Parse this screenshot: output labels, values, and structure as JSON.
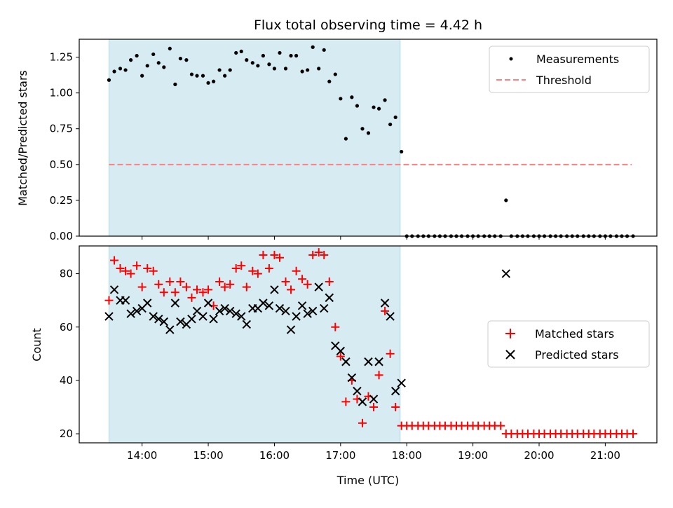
{
  "chart_data": [
    {
      "type": "scatter",
      "panel": "ratio",
      "title": "Flux total observing time = 4.42 h",
      "xlabel": "",
      "ylabel": "Matched/Predicted stars",
      "xlim": [
        13.05,
        21.78
      ],
      "ylim": [
        0.0,
        1.375
      ],
      "xticks": [
        14,
        15,
        16,
        17,
        18,
        19,
        20,
        21
      ],
      "yticks": [
        0.0,
        0.25,
        0.5,
        0.75,
        1.0,
        1.25
      ],
      "ytick_labels": [
        "0.00",
        "0.25",
        "0.50",
        "0.75",
        "1.00",
        "1.25"
      ],
      "observing_window": [
        13.5,
        17.9
      ],
      "colors": {
        "span": "#add8e6",
        "measurement": "#000000",
        "threshold": "#ff8080"
      },
      "legend": {
        "placement": "upper right",
        "entries": [
          "Measurements",
          "Threshold"
        ]
      },
      "threshold": {
        "name": "Threshold",
        "value": 0.5,
        "x_range": [
          13.5,
          21.4
        ]
      },
      "series": [
        {
          "name": "Measurements",
          "x": [
            13.5,
            13.58,
            13.67,
            13.75,
            13.83,
            13.92,
            14.0,
            14.08,
            14.17,
            14.25,
            14.33,
            14.42,
            14.5,
            14.58,
            14.67,
            14.75,
            14.83,
            14.92,
            15.0,
            15.08,
            15.17,
            15.25,
            15.33,
            15.42,
            15.5,
            15.58,
            15.67,
            15.75,
            15.83,
            15.92,
            16.0,
            16.08,
            16.17,
            16.25,
            16.33,
            16.42,
            16.5,
            16.58,
            16.67,
            16.75,
            16.83,
            16.92,
            17.0,
            17.08,
            17.17,
            17.25,
            17.33,
            17.42,
            17.5,
            17.58,
            17.67,
            17.75,
            17.83,
            17.92,
            18.0,
            18.08,
            18.17,
            18.25,
            18.33,
            18.42,
            18.5,
            18.58,
            18.67,
            18.75,
            18.83,
            18.92,
            19.0,
            19.08,
            19.17,
            19.25,
            19.33,
            19.42,
            19.5,
            19.58,
            19.67,
            19.75,
            19.83,
            19.92,
            20.0,
            20.08,
            20.17,
            20.25,
            20.33,
            20.42,
            20.5,
            20.58,
            20.67,
            20.75,
            20.83,
            20.92,
            21.0,
            21.08,
            21.17,
            21.25,
            21.33,
            21.42
          ],
          "y": [
            1.09,
            1.15,
            1.17,
            1.16,
            1.23,
            1.26,
            1.12,
            1.19,
            1.27,
            1.21,
            1.18,
            1.31,
            1.06,
            1.24,
            1.23,
            1.13,
            1.12,
            1.12,
            1.07,
            1.08,
            1.16,
            1.12,
            1.16,
            1.28,
            1.29,
            1.23,
            1.21,
            1.19,
            1.26,
            1.2,
            1.17,
            1.28,
            1.17,
            1.26,
            1.26,
            1.15,
            1.16,
            1.32,
            1.17,
            1.3,
            1.08,
            1.13,
            0.96,
            0.68,
            0.97,
            0.91,
            0.75,
            0.72,
            0.9,
            0.89,
            0.95,
            0.78,
            0.83,
            0.59,
            0.0,
            0.0,
            0.0,
            0.0,
            0.0,
            0.0,
            0.0,
            0.0,
            0.0,
            0.0,
            0.0,
            0.0,
            0.0,
            0.0,
            0.0,
            0.0,
            0.0,
            0.0,
            0.25,
            0.0,
            0.0,
            0.0,
            0.0,
            0.0,
            0.0,
            0.0,
            0.0,
            0.0,
            0.0,
            0.0,
            0.0,
            0.0,
            0.0,
            0.0,
            0.0,
            0.0,
            0.0,
            0.0,
            0.0,
            0.0,
            0.0,
            0.0
          ]
        }
      ]
    },
    {
      "type": "scatter",
      "panel": "counts",
      "title": "",
      "xlabel": "Time (UTC)",
      "ylabel": "Count",
      "xlim": [
        13.05,
        21.78
      ],
      "ylim": [
        16.6,
        90.4
      ],
      "xticks": [
        14,
        15,
        16,
        17,
        18,
        19,
        20,
        21
      ],
      "xtick_labels": [
        "14:00",
        "15:00",
        "16:00",
        "17:00",
        "18:00",
        "19:00",
        "20:00",
        "21:00"
      ],
      "yticks": [
        20,
        40,
        60,
        80
      ],
      "ytick_labels": [
        "20",
        "40",
        "60",
        "80"
      ],
      "observing_window": [
        13.5,
        17.9
      ],
      "colors": {
        "span": "#add8e6",
        "matched": "#ff0000",
        "predicted": "#000000"
      },
      "legend": {
        "placement": "center right",
        "entries": [
          "Matched stars",
          "Predicted stars"
        ]
      },
      "series": [
        {
          "name": "Matched stars",
          "marker": "plus",
          "x": [
            13.5,
            13.58,
            13.67,
            13.75,
            13.83,
            13.92,
            14.0,
            14.08,
            14.17,
            14.25,
            14.33,
            14.42,
            14.5,
            14.58,
            14.67,
            14.75,
            14.83,
            14.92,
            15.0,
            15.08,
            15.17,
            15.25,
            15.33,
            15.42,
            15.5,
            15.58,
            15.67,
            15.75,
            15.83,
            15.92,
            16.0,
            16.08,
            16.17,
            16.25,
            16.33,
            16.42,
            16.5,
            16.58,
            16.67,
            16.75,
            16.83,
            16.92,
            17.0,
            17.08,
            17.17,
            17.25,
            17.33,
            17.42,
            17.5,
            17.58,
            17.67,
            17.75,
            17.83,
            17.92,
            18.0,
            18.08,
            18.17,
            18.25,
            18.33,
            18.42,
            18.5,
            18.58,
            18.67,
            18.75,
            18.83,
            18.92,
            19.0,
            19.08,
            19.17,
            19.25,
            19.33,
            19.42,
            19.5,
            19.58,
            19.67,
            19.75,
            19.83,
            19.92,
            20.0,
            20.08,
            20.17,
            20.25,
            20.33,
            20.42,
            20.5,
            20.58,
            20.67,
            20.75,
            20.83,
            20.92,
            21.0,
            21.08,
            21.17,
            21.25,
            21.33,
            21.42
          ],
          "y": [
            70,
            85,
            82,
            81,
            80,
            83,
            75,
            82,
            81,
            76,
            73,
            77,
            73,
            77,
            75,
            71,
            74,
            73,
            74,
            68,
            77,
            75,
            76,
            82,
            83,
            75,
            81,
            80,
            87,
            82,
            87,
            86,
            77,
            74,
            81,
            78,
            76,
            87,
            88,
            87,
            77,
            60,
            49,
            32,
            40,
            33,
            24,
            34,
            30,
            42,
            66,
            50,
            30,
            23,
            23,
            23,
            23,
            23,
            23,
            23,
            23,
            23,
            23,
            23,
            23,
            23,
            23,
            23,
            23,
            23,
            23,
            23,
            20,
            20,
            20,
            20,
            20,
            20,
            20,
            20,
            20,
            20,
            20,
            20,
            20,
            20,
            20,
            20,
            20,
            20,
            20,
            20,
            20,
            20,
            20,
            20
          ]
        },
        {
          "name": "Predicted stars",
          "marker": "x",
          "x": [
            13.5,
            13.58,
            13.67,
            13.75,
            13.83,
            13.92,
            14.0,
            14.08,
            14.17,
            14.25,
            14.33,
            14.42,
            14.5,
            14.58,
            14.67,
            14.75,
            14.83,
            14.92,
            15.0,
            15.08,
            15.17,
            15.25,
            15.33,
            15.42,
            15.5,
            15.58,
            15.67,
            15.75,
            15.83,
            15.92,
            16.0,
            16.08,
            16.17,
            16.25,
            16.33,
            16.42,
            16.5,
            16.58,
            16.67,
            16.75,
            16.83,
            16.92,
            17.0,
            17.08,
            17.17,
            17.25,
            17.33,
            17.42,
            17.5,
            17.58,
            17.67,
            17.75,
            17.83,
            17.92,
            19.5
          ],
          "y": [
            64,
            74,
            70,
            70,
            65,
            66,
            67,
            69,
            64,
            63,
            62,
            59,
            69,
            62,
            61,
            63,
            66,
            64,
            69,
            63,
            66,
            67,
            66,
            65,
            64,
            61,
            67,
            67,
            69,
            68,
            74,
            67,
            66,
            59,
            64,
            68,
            65,
            66,
            75,
            67,
            71,
            53,
            51,
            47,
            41,
            36,
            32,
            47,
            33,
            47,
            69,
            64,
            36,
            39,
            80
          ]
        }
      ]
    }
  ]
}
